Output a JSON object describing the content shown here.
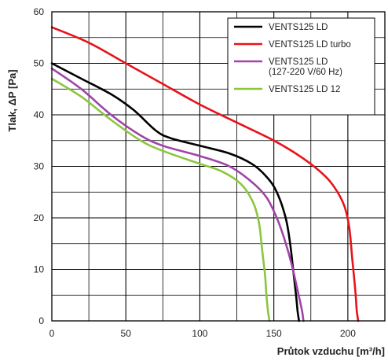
{
  "chart_data": {
    "type": "line",
    "xlabel": "Průtok vzduchu [m³/h]",
    "ylabel": "Tlak, ΔP [Pa]",
    "xlim": [
      0,
      225
    ],
    "ylim": [
      0,
      60
    ],
    "x_ticks": [
      "0",
      "50",
      "100",
      "150",
      "200"
    ],
    "y_ticks": [
      "0",
      "10",
      "20",
      "30",
      "40",
      "50",
      "60"
    ],
    "grid": true,
    "legend_position": "top-right",
    "series": [
      {
        "name": "VENTS125 LD",
        "color": "#000000",
        "points": [
          [
            0,
            50
          ],
          [
            20,
            47
          ],
          [
            40,
            44
          ],
          [
            55,
            41
          ],
          [
            70,
            37
          ],
          [
            80,
            35.5
          ],
          [
            100,
            34
          ],
          [
            120,
            32.5
          ],
          [
            135,
            30.5
          ],
          [
            145,
            28
          ],
          [
            152,
            25
          ],
          [
            158,
            20
          ],
          [
            161,
            15
          ],
          [
            163,
            10
          ],
          [
            165,
            5
          ],
          [
            166,
            2
          ],
          [
            167,
            0
          ]
        ]
      },
      {
        "name": "VENTS125 LD turbo",
        "color": "#e8131a",
        "points": [
          [
            0,
            57
          ],
          [
            25,
            54
          ],
          [
            50,
            50
          ],
          [
            75,
            46
          ],
          [
            100,
            42
          ],
          [
            125,
            38.5
          ],
          [
            150,
            35
          ],
          [
            170,
            31.5
          ],
          [
            185,
            28
          ],
          [
            193,
            25
          ],
          [
            198,
            22
          ],
          [
            201,
            18
          ],
          [
            203,
            12
          ],
          [
            205,
            6
          ],
          [
            206,
            2
          ],
          [
            207,
            0
          ]
        ]
      },
      {
        "name": "VENTS125 LD\n(127-220 V/60 Hz)",
        "color": "#a044a8",
        "points": [
          [
            0,
            49
          ],
          [
            20,
            45
          ],
          [
            40,
            40
          ],
          [
            60,
            36
          ],
          [
            75,
            34
          ],
          [
            100,
            32
          ],
          [
            120,
            30
          ],
          [
            135,
            27
          ],
          [
            145,
            24
          ],
          [
            152,
            20
          ],
          [
            157,
            16
          ],
          [
            162,
            11
          ],
          [
            166,
            6
          ],
          [
            169,
            2
          ],
          [
            170,
            0
          ]
        ]
      },
      {
        "name": "VENTS125 LD 12",
        "color": "#8cc63f",
        "points": [
          [
            0,
            47
          ],
          [
            20,
            43.5
          ],
          [
            40,
            39
          ],
          [
            60,
            35
          ],
          [
            75,
            33
          ],
          [
            100,
            30.5
          ],
          [
            115,
            29
          ],
          [
            128,
            26.5
          ],
          [
            136,
            23
          ],
          [
            140,
            19
          ],
          [
            142,
            14
          ],
          [
            144,
            9
          ],
          [
            145,
            5
          ],
          [
            146,
            2
          ],
          [
            147,
            0
          ]
        ]
      }
    ]
  }
}
